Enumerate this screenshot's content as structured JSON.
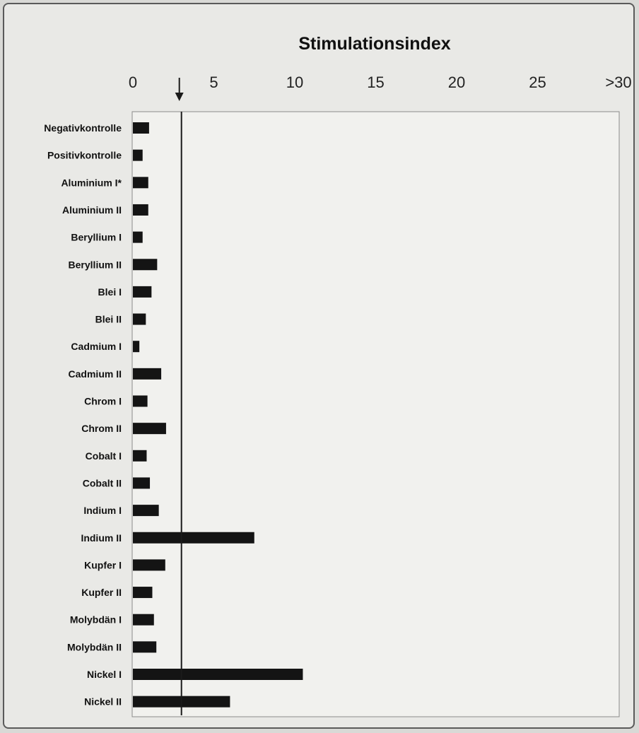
{
  "chart_data": {
    "type": "bar",
    "orientation": "horizontal",
    "title": "Stimulationsindex",
    "xlim": [
      0,
      30
    ],
    "x_tick_values": [
      0,
      5,
      10,
      15,
      20,
      25,
      30
    ],
    "x_tick_labels": [
      "0",
      "5",
      "10",
      "15",
      "20",
      "25",
      ">30"
    ],
    "threshold": 3,
    "categories": [
      "Negativkontrolle",
      "Positivkontrolle",
      "Aluminium I*",
      "Aluminium II",
      "Beryllium I",
      "Beryllium II",
      "Blei I",
      "Blei II",
      "Cadmium I",
      "Cadmium II",
      "Chrom I",
      "Chrom II",
      "Cobalt I",
      "Cobalt II",
      "Indium I",
      "Indium II",
      "Kupfer I",
      "Kupfer II",
      "Molybdän I",
      "Molybdän II",
      "Nickel I",
      "Nickel II"
    ],
    "values": [
      1.0,
      0.6,
      0.95,
      0.95,
      0.6,
      1.5,
      1.15,
      0.8,
      0.4,
      1.75,
      0.9,
      2.05,
      0.85,
      1.05,
      1.6,
      7.5,
      2.0,
      1.2,
      1.3,
      1.45,
      10.5,
      6.0
    ],
    "grid": false,
    "colors": {
      "bar": "#141414",
      "plot_bg": "#f1f1ee",
      "threshold_line": "#1a1a1a"
    }
  }
}
